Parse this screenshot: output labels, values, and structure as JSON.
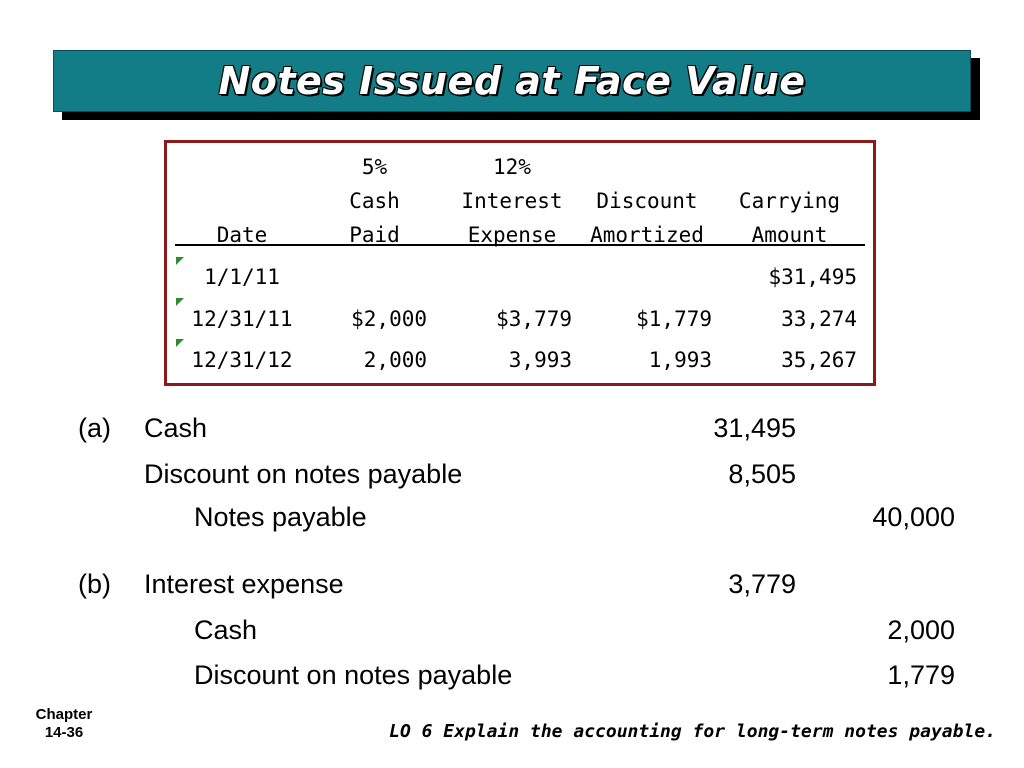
{
  "title": "Notes Issued at Face Value",
  "table": {
    "headers": {
      "date": [
        "",
        "",
        "Date"
      ],
      "cash": [
        "5%",
        "Cash",
        "Paid"
      ],
      "interest": [
        "12%",
        "Interest",
        "Expense"
      ],
      "discount": [
        "",
        "Discount",
        "Amortized"
      ],
      "carrying": [
        "",
        "Carrying",
        "Amount"
      ]
    },
    "rows": [
      {
        "date": "1/1/11",
        "cash": "",
        "interest": "",
        "discount": "",
        "carrying": "$31,495"
      },
      {
        "date": "12/31/11",
        "cash": "$2,000",
        "interest": "$3,779",
        "discount": "$1,779",
        "carrying": "33,274"
      },
      {
        "date": "12/31/12",
        "cash": "2,000",
        "interest": "3,993",
        "discount": "1,993",
        "carrying": "35,267"
      }
    ]
  },
  "entries": {
    "a": {
      "label": "(a)",
      "lines": [
        {
          "account": "Cash",
          "debit": "31,495",
          "credit": ""
        },
        {
          "account": "Discount on notes payable",
          "debit": "8,505",
          "credit": ""
        },
        {
          "account": "Notes payable",
          "debit": "",
          "credit": "40,000"
        }
      ]
    },
    "b": {
      "label": "(b)",
      "lines": [
        {
          "account": "Interest expense",
          "debit": "3,779",
          "credit": ""
        },
        {
          "account": "Cash",
          "debit": "",
          "credit": "2,000"
        },
        {
          "account": "Discount on notes payable",
          "debit": "",
          "credit": "1,779"
        }
      ]
    }
  },
  "footer": {
    "chapter_label": "Chapter",
    "chapter_number": "14-36",
    "learning_objective": "LO 6 Explain the accounting for long-term notes payable."
  },
  "colors": {
    "title_bar": "#137d87",
    "table_border": "#8b1a1a",
    "row_marker": "#2e8b2e"
  }
}
